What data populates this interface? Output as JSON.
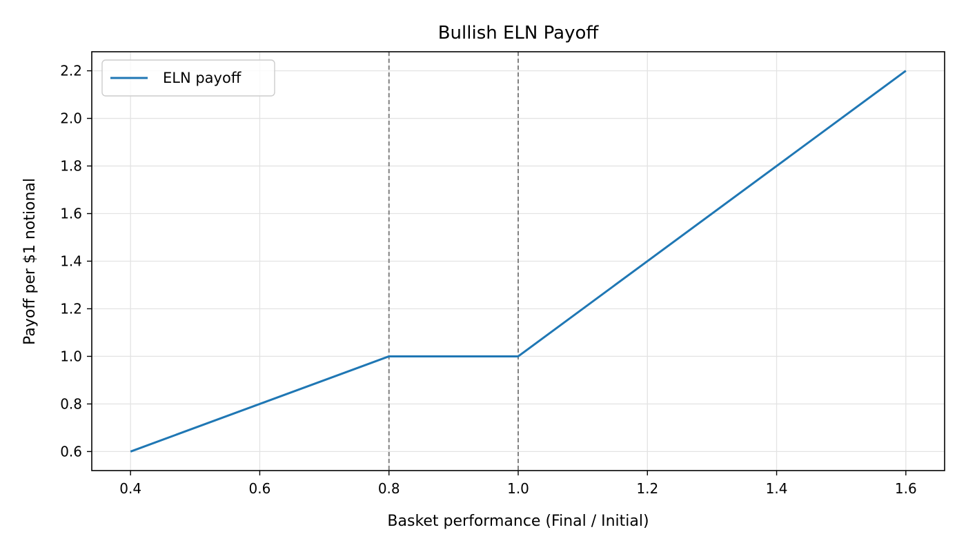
{
  "chart_data": {
    "type": "line",
    "title": "Bullish ELN Payoff",
    "xlabel": "Basket performance (Final / Initial)",
    "ylabel": "Payoff per $1 notional",
    "xlim": [
      0.34,
      1.66
    ],
    "ylim": [
      0.52,
      2.28
    ],
    "xticks": [
      "0.4",
      "0.6",
      "0.8",
      "1.0",
      "1.2",
      "1.4",
      "1.6"
    ],
    "yticks": [
      "0.6",
      "0.8",
      "1.0",
      "1.2",
      "1.4",
      "1.6",
      "1.8",
      "2.0",
      "2.2"
    ],
    "grid": true,
    "legend_position": "upper-left",
    "series": [
      {
        "name": "ELN payoff",
        "color": "#1f77b4",
        "x": [
          0.4,
          0.8,
          1.0,
          1.6
        ],
        "y": [
          0.6,
          1.0,
          1.0,
          2.2
        ]
      }
    ],
    "vlines": [
      {
        "x": 0.8,
        "color": "#808080",
        "style": "dashed"
      },
      {
        "x": 1.0,
        "color": "#808080",
        "style": "dashed"
      }
    ]
  }
}
